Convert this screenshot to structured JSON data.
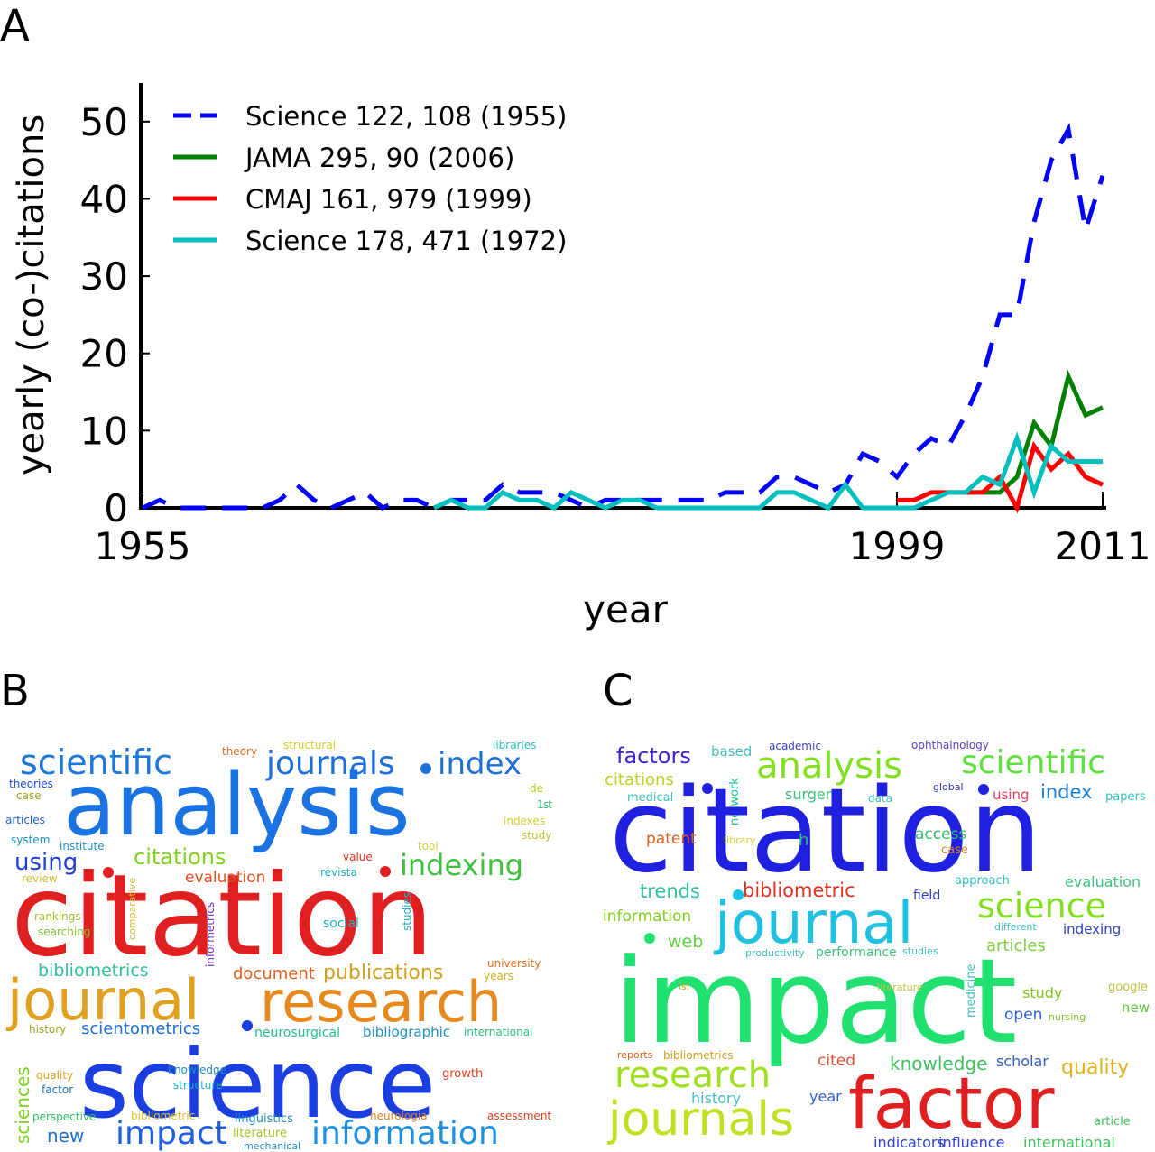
{
  "panel_labels": [
    "A",
    "B",
    "C"
  ],
  "chart_data": {
    "type": "line",
    "xlabel": "year",
    "ylabel": "yearly (co-)citations",
    "xlim": [
      1955,
      2011
    ],
    "ylim": [
      0,
      55
    ],
    "xticks": [
      1955,
      1999,
      2011
    ],
    "yticks": [
      0,
      10,
      20,
      30,
      40,
      50
    ],
    "legend": "upper left",
    "series": [
      {
        "name": "Science 122, 108 (1955)",
        "color": "#0000ff",
        "dashed": true,
        "x": [
          1955,
          1956,
          1957,
          1958,
          1959,
          1960,
          1961,
          1962,
          1963,
          1964,
          1965,
          1966,
          1967,
          1968,
          1969,
          1970,
          1971,
          1972,
          1973,
          1974,
          1975,
          1976,
          1977,
          1978,
          1979,
          1980,
          1981,
          1982,
          1983,
          1984,
          1985,
          1986,
          1987,
          1988,
          1989,
          1990,
          1991,
          1992,
          1993,
          1994,
          1995,
          1996,
          1997,
          1998,
          1999,
          2000,
          2001,
          2002,
          2003,
          2004,
          2005,
          2006,
          2007,
          2008,
          2009,
          2010,
          2011
        ],
        "values": [
          0,
          1,
          0,
          0,
          0,
          0,
          0,
          0,
          1,
          3,
          1,
          0,
          1,
          2,
          0,
          1,
          1,
          0,
          1,
          1,
          1,
          3,
          2,
          2,
          2,
          1,
          0,
          1,
          1,
          1,
          1,
          1,
          1,
          1,
          2,
          2,
          2,
          4,
          4,
          3,
          2,
          3,
          7,
          6,
          4,
          7,
          9,
          8,
          12,
          17,
          25,
          25,
          37,
          45,
          49,
          36,
          43
        ]
      },
      {
        "name": "JAMA 295, 90 (2006)",
        "color": "#008000",
        "dashed": false,
        "x": [
          2003,
          2004,
          2005,
          2006,
          2007,
          2008,
          2009,
          2010,
          2011
        ],
        "values": [
          2,
          2,
          2,
          4,
          11,
          8,
          17,
          12,
          13
        ]
      },
      {
        "name": "CMAJ 161, 979 (1999)",
        "color": "#ff0000",
        "dashed": false,
        "x": [
          1999,
          2000,
          2001,
          2002,
          2003,
          2004,
          2005,
          2006,
          2007,
          2008,
          2009,
          2010,
          2011
        ],
        "values": [
          1,
          1,
          2,
          2,
          2,
          2,
          4,
          0,
          8,
          5,
          7,
          4,
          3
        ]
      },
      {
        "name": "Science 178, 471 (1972)",
        "color": "#00bfbf",
        "dashed": false,
        "x": [
          1972,
          1973,
          1974,
          1975,
          1976,
          1977,
          1978,
          1979,
          1980,
          1981,
          1982,
          1983,
          1984,
          1985,
          1986,
          1987,
          1988,
          1989,
          1990,
          1991,
          1992,
          1993,
          1994,
          1995,
          1996,
          1997,
          1998,
          1999,
          2000,
          2001,
          2002,
          2003,
          2004,
          2005,
          2006,
          2007,
          2008,
          2009,
          2010,
          2011
        ],
        "values": [
          0,
          1,
          0,
          0,
          2,
          1,
          1,
          0,
          2,
          1,
          0,
          1,
          1,
          0,
          0,
          0,
          0,
          0,
          0,
          0,
          2,
          2,
          1,
          0,
          3,
          0,
          0,
          0,
          0,
          1,
          2,
          2,
          4,
          3,
          9,
          2,
          8,
          6,
          6,
          6
        ]
      }
    ]
  },
  "word_cloud_b": {
    "words": [
      "scientific",
      "journals",
      "index",
      "analysis",
      "citation",
      "journal",
      "research",
      "science",
      "impact",
      "information",
      "theory",
      "structural",
      "libraries",
      "theories",
      "case",
      "articles",
      "de",
      "1st",
      "indexes",
      "system",
      "institute",
      "tool",
      "study",
      "citations",
      "using",
      "indexing",
      "value",
      "review",
      "evaluation",
      "revista",
      "rankings",
      "searching",
      "social",
      "bibliometrics",
      "document",
      "publications",
      "university",
      "years",
      "history",
      "scientometrics",
      "neurosurgical",
      "bibliographic",
      "international",
      "knowledge",
      "structure",
      "quality",
      "factor",
      "growth",
      "perspective",
      "bibliometric",
      "neurologia",
      "assessment",
      "new",
      "linguistics",
      "literature",
      "mechanical",
      "comparative",
      "informetrics",
      "studies",
      "sciences"
    ]
  },
  "word_cloud_c": {
    "words": [
      "factors",
      "based",
      "academic",
      "ophthalnology",
      "analysis",
      "scientific",
      "citations",
      "medical",
      "network",
      "surgery",
      "data",
      "global",
      "using",
      "index",
      "papers",
      "citation",
      "patent",
      "library",
      "h",
      "access",
      "case",
      "approach",
      "evaluation",
      "trends",
      "bibliometric",
      "field",
      "science",
      "information",
      "journal",
      "different",
      "indexing",
      "web",
      "productivity",
      "performance",
      "studies",
      "articles",
      "impact",
      "medicine",
      "isi",
      "literature",
      "study",
      "google",
      "new",
      "open",
      "nursing",
      "reports",
      "bibliometrics",
      "cited",
      "knowledge",
      "scholar",
      "quality",
      "research",
      "history",
      "year",
      "factor",
      "journals",
      "article",
      "indicators",
      "influence",
      "international"
    ]
  }
}
